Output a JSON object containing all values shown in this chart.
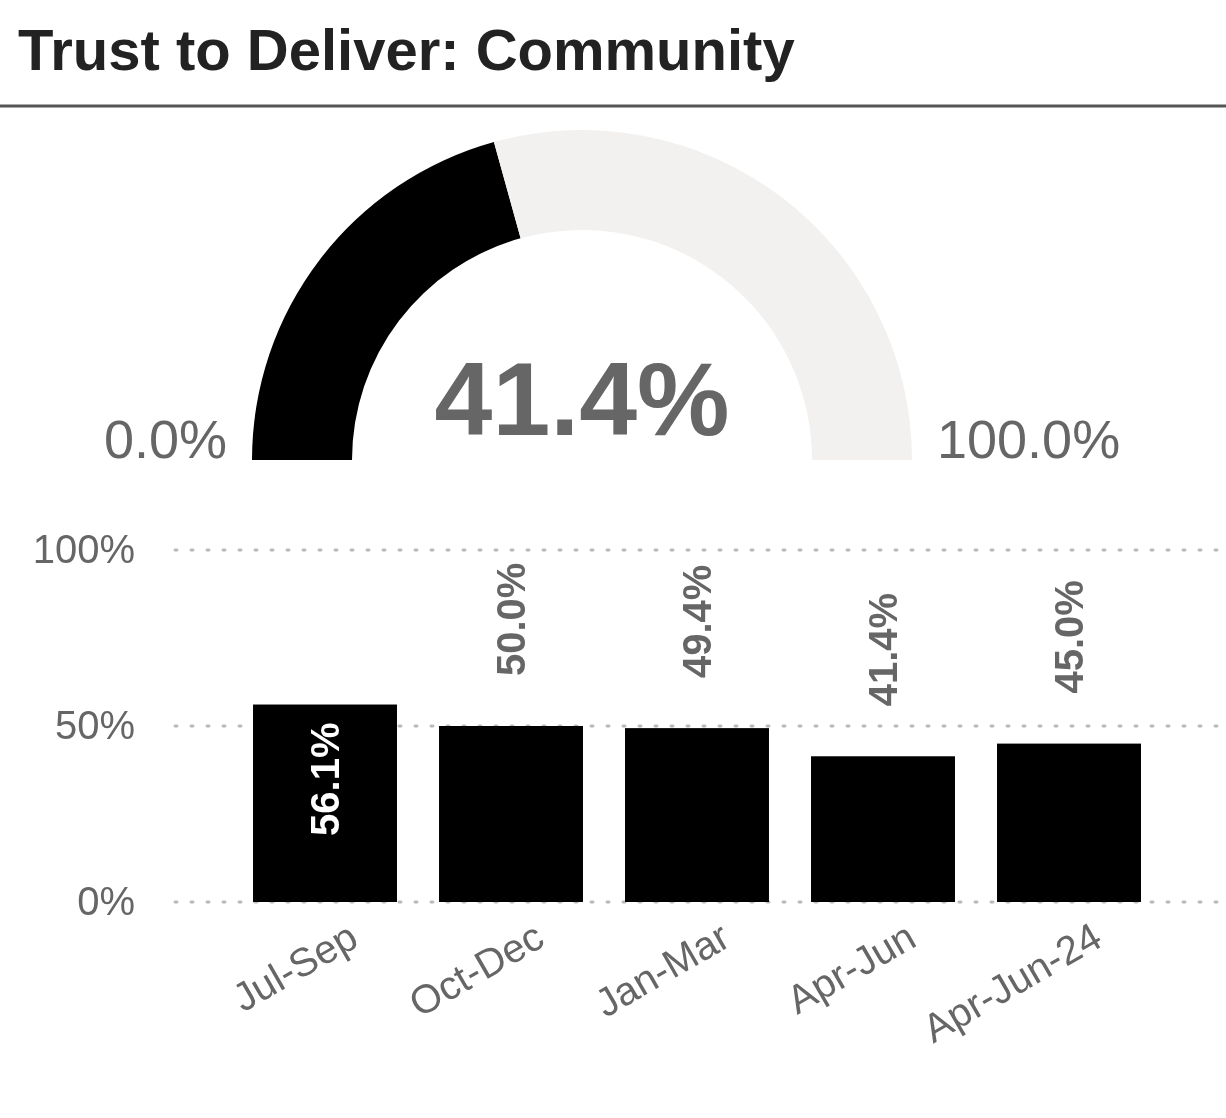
{
  "chart_data": [
    {
      "type": "donut",
      "title": "Trust to Deliver: Community",
      "categories": [
        null,
        null
      ],
      "values": [
        41.4,
        58.6
      ],
      "colors": [
        "#000000",
        "#f2f1ef"
      ],
      "annotations": [
        "41.4%",
        "0.0%",
        "100.0%"
      ]
    },
    {
      "type": "bar",
      "categories": [
        "Jul-Sep",
        "Oct-Dec",
        "Jan-Mar",
        "Apr-Jun",
        "Apr-Jun-24"
      ],
      "values": [
        56.1,
        50.0,
        49.4,
        41.4,
        45.0
      ],
      "color": "#000000",
      "value_labels": [
        "56.1%",
        "50.0%",
        "49.4%",
        "41.4%",
        "45.0%"
      ],
      "ylim": [
        0,
        100
      ],
      "yticks": [
        {
          "value": 0,
          "label": "0%"
        },
        {
          "value": 50,
          "label": "50%"
        },
        {
          "value": 100,
          "label": "100%"
        }
      ],
      "grid": "y"
    }
  ]
}
